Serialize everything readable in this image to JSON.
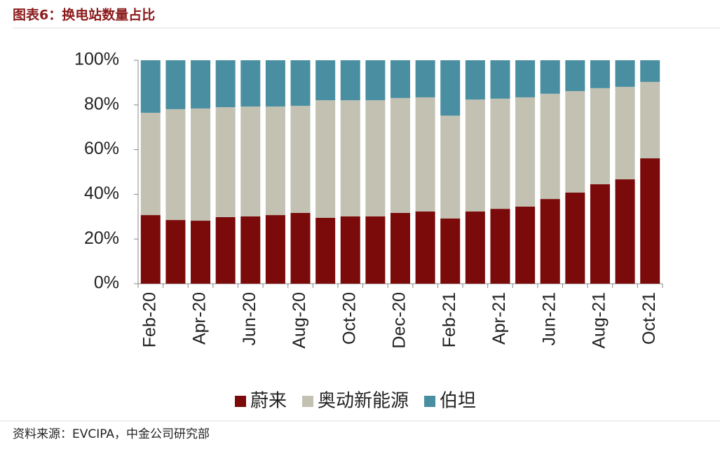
{
  "header": {
    "title": "图表6：换电站数量占比"
  },
  "chart_data": {
    "type": "stacked-bar",
    "categories": [
      "Feb-20",
      null,
      "Apr-20",
      null,
      "Jun-20",
      null,
      "Aug-20",
      null,
      "Oct-20",
      null,
      "Dec-20",
      null,
      "Feb-21",
      null,
      "Apr-21",
      null,
      "Jun-21",
      null,
      "Aug-21",
      null,
      "Oct-21"
    ],
    "series": [
      {
        "name": "蔚来",
        "color": "#7b0a0a",
        "values": [
          30.7,
          28.5,
          28.2,
          29.8,
          30.1,
          30.7,
          31.7,
          29.5,
          30.1,
          30.1,
          31.7,
          32.3,
          29.2,
          32.3,
          33.5,
          34.5,
          37.9,
          40.8,
          44.5,
          46.7,
          56.1
        ]
      },
      {
        "name": "奥动新能源",
        "color": "#c2c1b2",
        "values": [
          45.8,
          49.6,
          50.2,
          49.2,
          49.2,
          48.6,
          47.9,
          52.6,
          52.0,
          52.0,
          51.4,
          51.1,
          46.0,
          50.1,
          49.3,
          48.9,
          47.1,
          45.4,
          43.0,
          41.4,
          34.2
        ]
      },
      {
        "name": "伯坦",
        "color": "#4a8fa1",
        "values": [
          23.5,
          21.9,
          21.6,
          21.0,
          20.7,
          20.7,
          20.4,
          17.9,
          17.9,
          17.9,
          16.9,
          16.6,
          24.8,
          17.6,
          17.2,
          16.6,
          15.0,
          13.8,
          12.5,
          11.9,
          9.7
        ]
      }
    ],
    "ylim": [
      0,
      100
    ],
    "yticks": [
      {
        "value": 0,
        "label": "0%"
      },
      {
        "value": 20,
        "label": "20%"
      },
      {
        "value": 40,
        "label": "40%"
      },
      {
        "value": 60,
        "label": "60%"
      },
      {
        "value": 80,
        "label": "80%"
      },
      {
        "value": 100,
        "label": "100%"
      }
    ],
    "legend": "bottom"
  },
  "footer": {
    "source": "资料来源：EVCIPA，中金公司研究部"
  }
}
